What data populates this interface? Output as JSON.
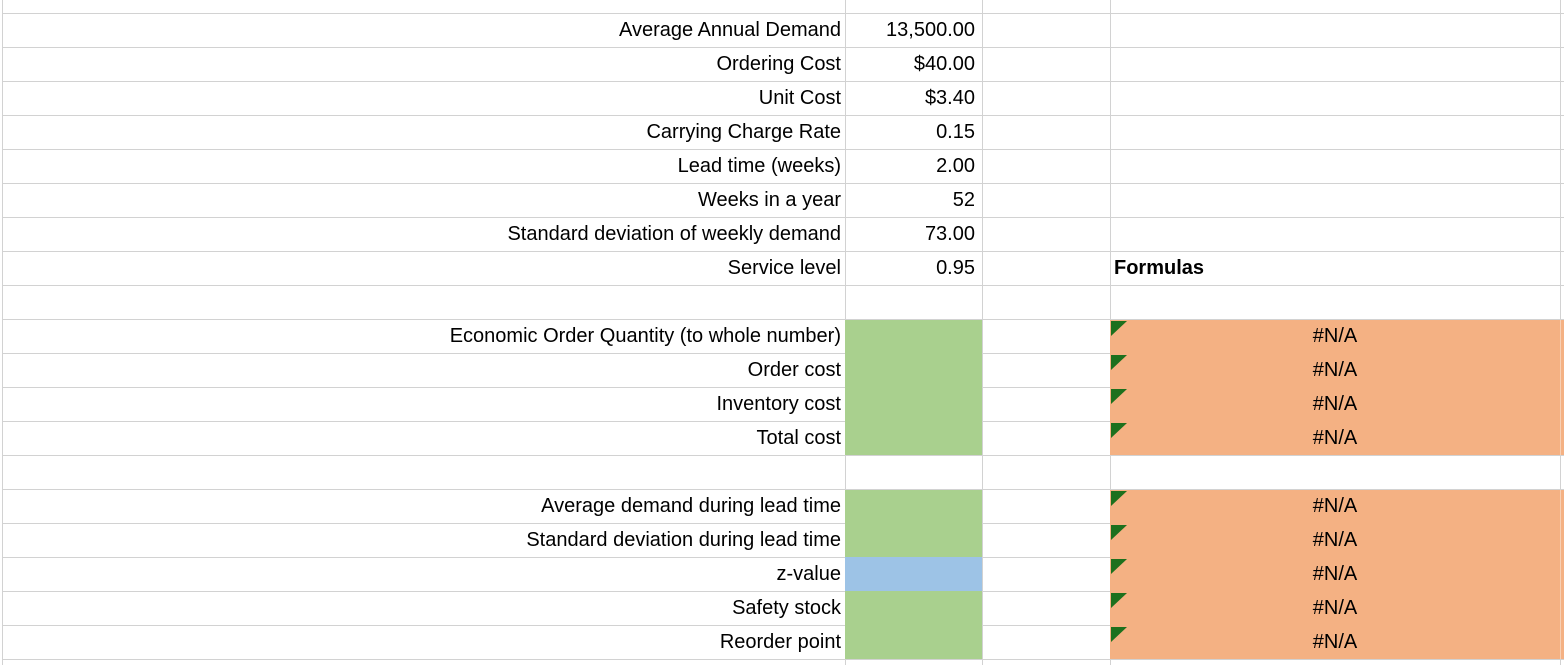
{
  "formulas_header": "Formulas",
  "error_value": "#N/A",
  "colors": {
    "grid_line": "#d2d2d2",
    "input_fill_green": "#a9d08e",
    "input_fill_blue": "#9dc3e6",
    "formula_fill_orange": "#f4b183",
    "error_indicator_green": "#1d701d"
  },
  "rows": [
    {
      "label": "Average Annual Demand",
      "value": "13,500.00"
    },
    {
      "label": "Ordering Cost",
      "value": "$40.00"
    },
    {
      "label": "Unit Cost",
      "value": "$3.40"
    },
    {
      "label": "Carrying Charge Rate",
      "value": "0.15"
    },
    {
      "label": "Lead time (weeks)",
      "value": "2.00"
    },
    {
      "label": "Weeks in a year",
      "value": "52"
    },
    {
      "label": "Standard deviation of weekly demand",
      "value": "73.00"
    },
    {
      "label": "Service level",
      "value": "0.95",
      "d_header": true
    },
    {},
    {
      "label": "Economic Order Quantity (to whole number)",
      "b_fill": "green",
      "d_error": true
    },
    {
      "label": "Order cost",
      "b_fill": "green",
      "d_error": true
    },
    {
      "label": "Inventory cost",
      "b_fill": "green",
      "d_error": true
    },
    {
      "label": "Total cost",
      "b_fill": "green",
      "d_error": true
    },
    {},
    {
      "label": "Average demand during lead time",
      "b_fill": "green",
      "d_error": true
    },
    {
      "label": "Standard deviation during lead time",
      "b_fill": "green",
      "d_error": true
    },
    {
      "label": "z-value",
      "b_fill": "blue",
      "d_error": true
    },
    {
      "label": "Safety stock",
      "b_fill": "green",
      "d_error": true
    },
    {
      "label": "Reorder point",
      "b_fill": "green",
      "d_error": true
    }
  ]
}
